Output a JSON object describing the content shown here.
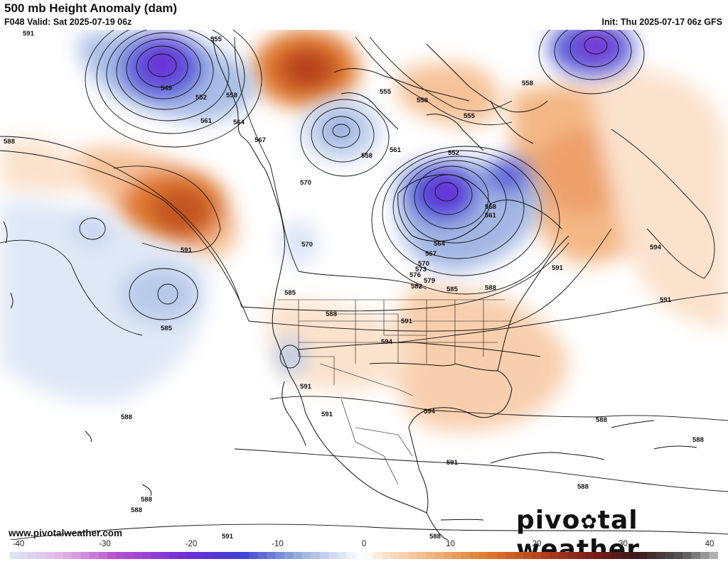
{
  "header": {
    "title": "500 mb Height Anomaly (dam)",
    "valid": "F048 Valid: Sat 2025-07-19 06z",
    "init": "Init: Thu 2025-07-17 06z GFS"
  },
  "watermark": {
    "url": "www.pivotalweather.com",
    "brand_left": "pivo",
    "brand_right": "tal weather",
    "brand_gear": "✿"
  },
  "colorbar": {
    "ticks": [
      "-40",
      "-30",
      "-20",
      "-10",
      "0",
      "10",
      "20",
      "30",
      "40"
    ],
    "min": -40,
    "max": 40,
    "stops": [
      {
        "v": -40,
        "c": "#dbe7f5"
      },
      {
        "v": -34,
        "c": "#e3b3e6"
      },
      {
        "v": -28,
        "c": "#b84fd0"
      },
      {
        "v": -20,
        "c": "#6f2ed8"
      },
      {
        "v": -14,
        "c": "#3d3ed6"
      },
      {
        "v": -8,
        "c": "#8ea6da"
      },
      {
        "v": -2,
        "c": "#e6edf8"
      },
      {
        "v": 0,
        "c": "#ffffff"
      },
      {
        "v": 2,
        "c": "#fbe6d3"
      },
      {
        "v": 8,
        "c": "#f2b27b"
      },
      {
        "v": 14,
        "c": "#e0782f"
      },
      {
        "v": 20,
        "c": "#b7401a"
      },
      {
        "v": 26,
        "c": "#7a1b1b"
      },
      {
        "v": 31,
        "c": "#3b1b1b"
      },
      {
        "v": 36,
        "c": "#555555"
      },
      {
        "v": 40,
        "c": "#bdbdbd"
      }
    ]
  },
  "map": {
    "colors": {
      "ocean": "#ffffff",
      "contour": "#111111",
      "coast": "#111111"
    },
    "contour_labels": [
      "591",
      "555",
      "549",
      "552",
      "558",
      "561",
      "564",
      "567",
      "555",
      "558",
      "561",
      "552",
      "555",
      "558",
      "558",
      "588",
      "570",
      "570",
      "558",
      "561",
      "567",
      "564",
      "570",
      "573",
      "576",
      "579",
      "582",
      "585",
      "588",
      "591",
      "591",
      "594",
      "585",
      "588",
      "594",
      "591",
      "594",
      "591",
      "591",
      "591",
      "591",
      "588",
      "588",
      "588",
      "588",
      "588",
      "588",
      "585",
      "591",
      "588"
    ]
  }
}
